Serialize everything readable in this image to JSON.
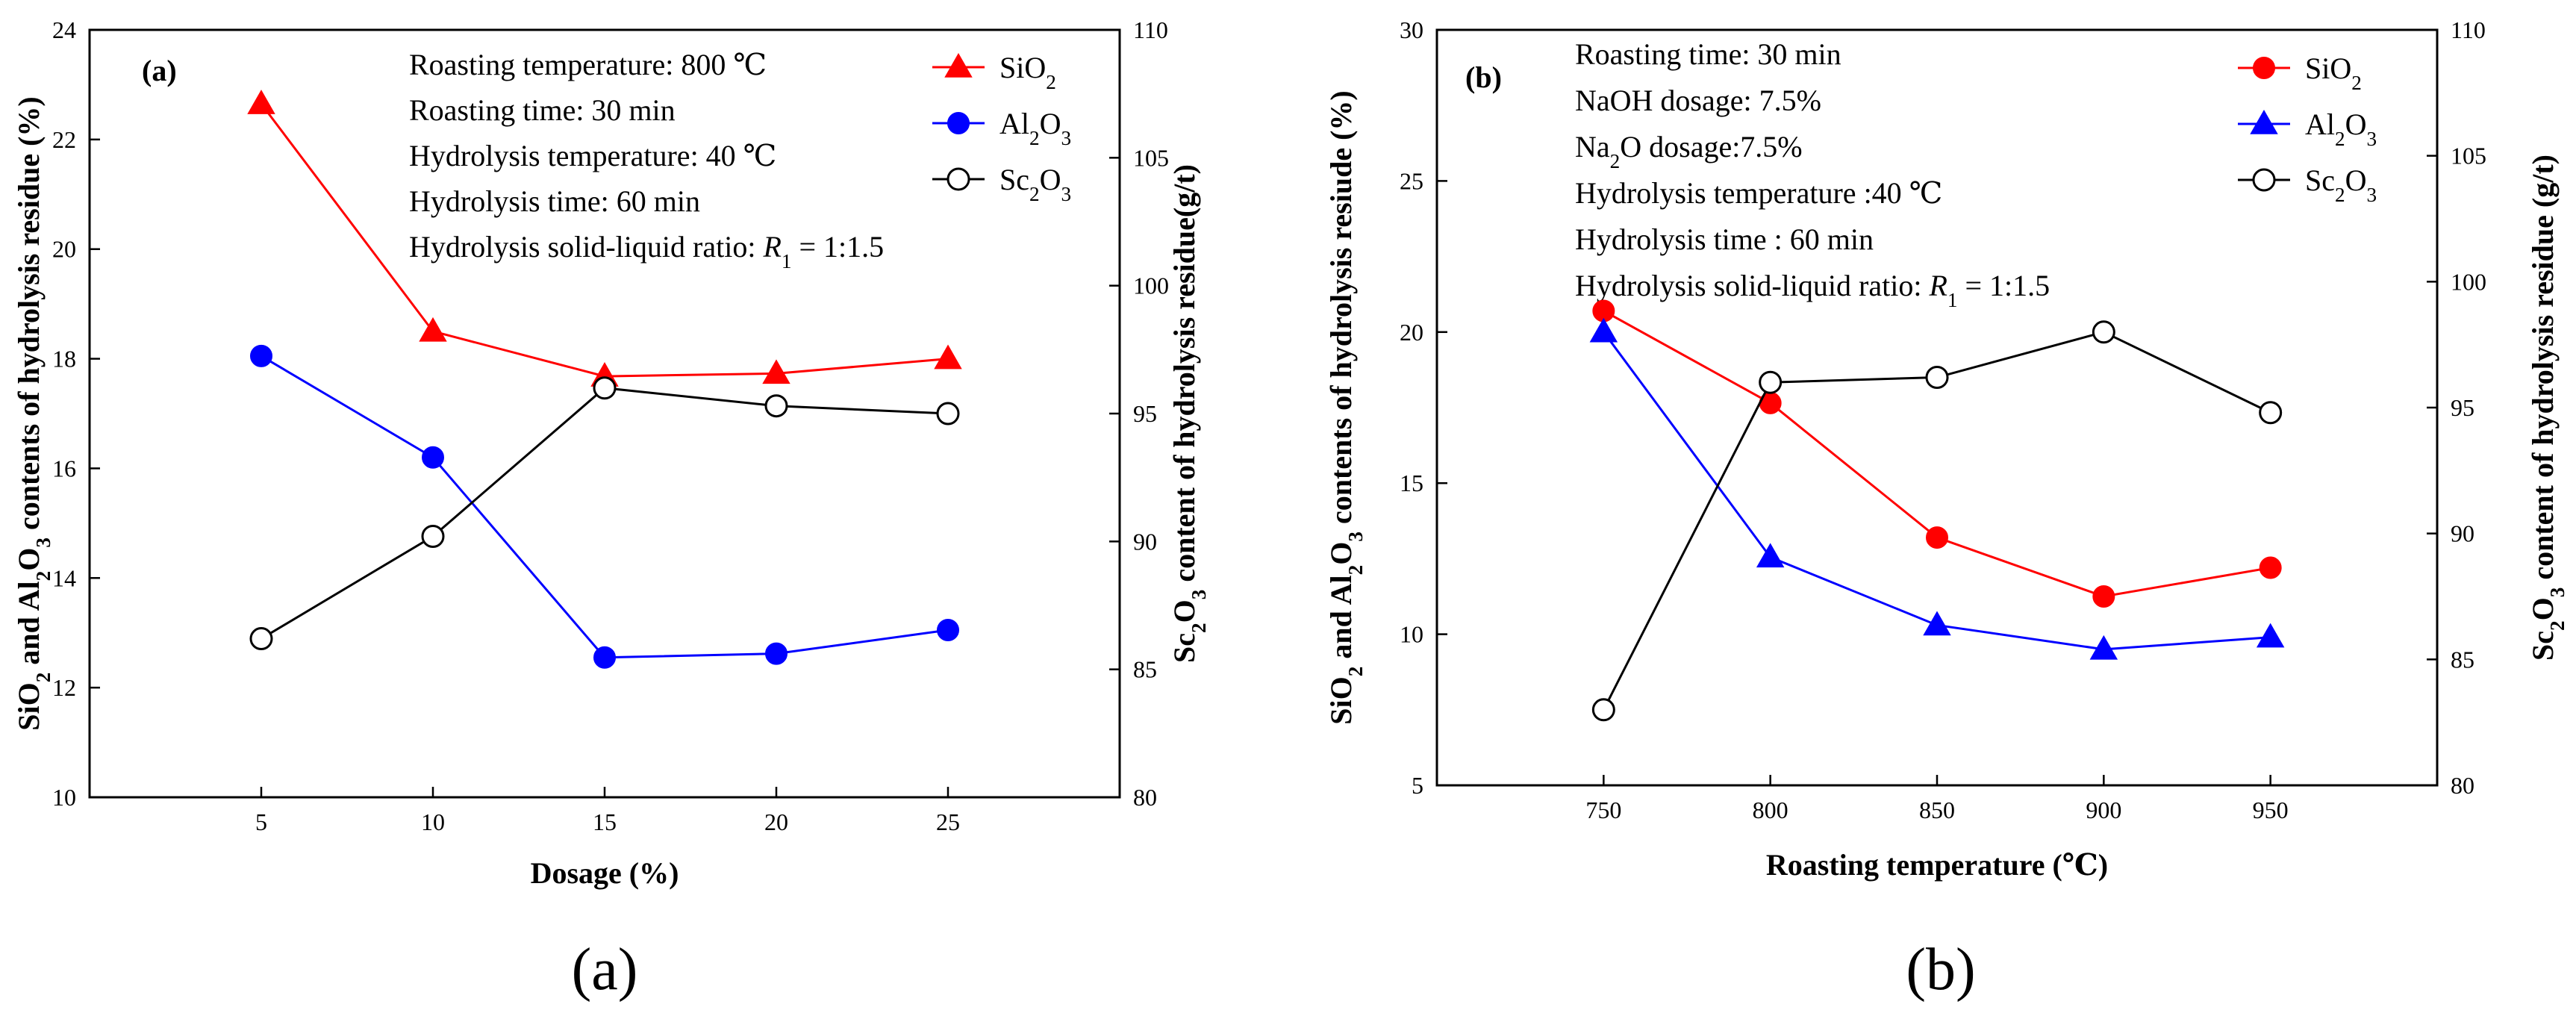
{
  "chart_data": [
    {
      "type": "line",
      "panel_tag": "(a)",
      "caption": "(a)",
      "caption_parts": [
        "(",
        "a",
        ")"
      ],
      "xlabel": "Dosage (%)",
      "x_ticks": [
        "5",
        "10",
        "15",
        "20",
        "25"
      ],
      "x": [
        5,
        10,
        15,
        20,
        25
      ],
      "xlim": [
        0,
        30
      ],
      "ylabel_left": "SiO2 and Al2O3 contents of hydrolysis residue (%)",
      "ylabel_left_parts": [
        "SiO",
        "2",
        " and Al",
        "2",
        "O",
        "3",
        " contents of hydrolysis residue (%)"
      ],
      "ylim_left": [
        10,
        24
      ],
      "yticks_left": [
        "10",
        "12",
        "14",
        "16",
        "18",
        "20",
        "22",
        "24"
      ],
      "ylabel_right": "Sc2O3 content of hydrolysis residue(g/t)",
      "ylabel_right_parts": [
        "Sc",
        "2",
        "O",
        "3",
        " content of hydrolysis residue(g/t)"
      ],
      "ylim_right": [
        80,
        110
      ],
      "yticks_right": [
        "80",
        "85",
        "90",
        "95",
        "100",
        "105",
        "110"
      ],
      "conditions": [
        "Roasting temperature: 800 ℃",
        "Roasting time: 30 min",
        "Hydrolysis temperature: 40 ℃",
        "Hydrolysis time: 60 min",
        "Hydrolysis solid-liquid ratio: R1 = 1:1.5"
      ],
      "ratio_parts": [
        "Hydrolysis solid-liquid ratio: ",
        "R",
        "1",
        " = 1:1.5"
      ],
      "legend": "top-right",
      "series": [
        {
          "name": "SiO2",
          "name_parts": [
            "SiO",
            "2",
            ""
          ],
          "axis": "left",
          "color": "#ff0000",
          "marker": "triangle",
          "values": [
            22.65,
            18.5,
            17.68,
            17.73,
            18.0
          ]
        },
        {
          "name": "Al2O3",
          "name_parts": [
            "Al",
            "2",
            "O",
            "3"
          ],
          "axis": "left",
          "color": "#0000ff",
          "marker": "circle",
          "values": [
            18.05,
            16.2,
            12.55,
            12.62,
            13.05
          ]
        },
        {
          "name": "Sc2O3",
          "name_parts": [
            "Sc",
            "2",
            "O",
            "3"
          ],
          "axis": "right",
          "color": "#000000",
          "marker": "open-circle",
          "values": [
            86.2,
            90.2,
            96.0,
            95.3,
            95.0
          ]
        }
      ]
    },
    {
      "type": "line",
      "panel_tag": "(b)",
      "caption": "(b)",
      "caption_parts": [
        "(",
        "b",
        ")"
      ],
      "xlabel": "Roasting temperature (℃)",
      "x_ticks": [
        "750",
        "800",
        "850",
        "900",
        "950"
      ],
      "x": [
        750,
        800,
        850,
        900,
        950
      ],
      "xlim": [
        700,
        1000
      ],
      "ylabel_left": "SiO2 and Al2O3 contents of hydrolysis resiude (%)",
      "ylabel_left_parts": [
        "SiO",
        "2",
        " and Al",
        "2",
        "O",
        "3",
        " contents of hydrolysis resiude (%)"
      ],
      "ylim_left": [
        5,
        30
      ],
      "yticks_left": [
        "5",
        "10",
        "15",
        "20",
        "25",
        "30"
      ],
      "ylabel_right": "Sc2O3 content of hydrolysis residue (g/t)",
      "ylabel_right_parts": [
        "Sc",
        "2",
        "O",
        "3",
        " content of hydrolysis residue (g/t)"
      ],
      "ylim_right": [
        80,
        110
      ],
      "yticks_right": [
        "80",
        "85",
        "90",
        "95",
        "100",
        "105",
        "110"
      ],
      "conditions": [
        "Roasting time: 30 min",
        "NaOH dosage: 7.5%",
        "Na2O dosage:7.5%",
        "Hydrolysis temperature :40 ℃",
        "Hydrolysis time : 60 min",
        "Hydrolysis solid-liquid ratio: R1 = 1:1.5"
      ],
      "na2o_parts": [
        "Na",
        "2",
        "O dosage:7.5%"
      ],
      "ratio_parts": [
        "Hydrolysis solid-liquid ratio: ",
        "R",
        "1",
        " = 1:1.5"
      ],
      "legend": "top-right",
      "series": [
        {
          "name": "SiO2",
          "name_parts": [
            "SiO",
            "2",
            ""
          ],
          "axis": "left",
          "color": "#ff0000",
          "marker": "circle",
          "values": [
            20.7,
            17.65,
            13.2,
            11.25,
            12.2
          ]
        },
        {
          "name": "Al2O3",
          "name_parts": [
            "Al",
            "2",
            "O",
            "3"
          ],
          "axis": "left",
          "color": "#0000ff",
          "marker": "triangle",
          "values": [
            20.0,
            12.55,
            10.3,
            9.5,
            9.9
          ]
        },
        {
          "name": "Sc2O3",
          "name_parts": [
            "Sc",
            "2",
            "O",
            "3"
          ],
          "axis": "right",
          "color": "#000000",
          "marker": "open-circle",
          "values": [
            83.0,
            96.0,
            96.2,
            98.0,
            94.8
          ]
        }
      ]
    }
  ]
}
